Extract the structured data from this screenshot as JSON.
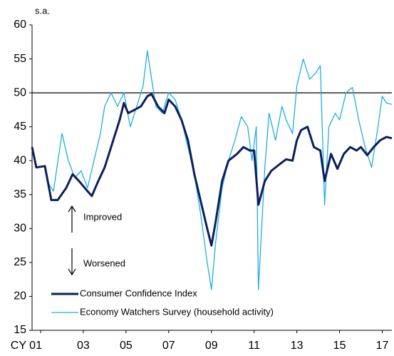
{
  "chart_data": {
    "type": "line",
    "unit_label": "s.a.",
    "annotations": [
      "Improved",
      "Worsened"
    ],
    "reference_line": 50,
    "xlim": [
      2000.6,
      2017.45
    ],
    "xticks": [
      {
        "value": 2001,
        "label": "CY 01"
      },
      {
        "value": 2003,
        "label": "03"
      },
      {
        "value": 2005,
        "label": "05"
      },
      {
        "value": 2007,
        "label": "07"
      },
      {
        "value": 2009,
        "label": "09"
      },
      {
        "value": 2011,
        "label": "11"
      },
      {
        "value": 2013,
        "label": "13"
      },
      {
        "value": 2015,
        "label": "15"
      },
      {
        "value": 2017,
        "label": "17"
      }
    ],
    "ylim": [
      15,
      60
    ],
    "yticks": [
      15,
      20,
      25,
      30,
      35,
      40,
      45,
      50,
      55,
      60
    ],
    "series": [
      {
        "name": "Consumer Confidence Index",
        "color": "#0b1f5e",
        "width": 3,
        "x": [
          2000.6,
          2000.8,
          2001.2,
          2001.5,
          2001.8,
          2002.2,
          2002.5,
          2002.8,
          2003.2,
          2003.4,
          2003.7,
          2004.0,
          2004.3,
          2004.7,
          2004.9,
          2005.1,
          2005.4,
          2005.7,
          2006.0,
          2006.2,
          2006.5,
          2006.8,
          2007.0,
          2007.3,
          2007.6,
          2007.9,
          2008.2,
          2008.5,
          2008.8,
          2009.0,
          2009.2,
          2009.5,
          2009.8,
          2010.2,
          2010.5,
          2010.8,
          2011.0,
          2011.2,
          2011.5,
          2011.8,
          2012.2,
          2012.5,
          2012.8,
          2013.0,
          2013.2,
          2013.5,
          2013.8,
          2014.1,
          2014.3,
          2014.6,
          2014.9,
          2015.2,
          2015.5,
          2015.8,
          2016.0,
          2016.3,
          2016.6,
          2016.9,
          2017.2,
          2017.45
        ],
        "values": [
          42,
          39,
          39.2,
          34.2,
          34.2,
          36,
          38,
          37,
          35.5,
          34.8,
          37,
          39,
          42,
          46,
          48.5,
          47,
          47.5,
          48,
          49.5,
          49.8,
          48,
          47,
          49,
          48,
          46,
          43,
          38,
          34,
          30,
          27.5,
          31,
          37,
          40,
          41,
          42,
          41.5,
          41.5,
          33.5,
          37,
          38.5,
          39.5,
          40.2,
          40,
          43,
          44.5,
          45,
          42,
          41.5,
          37,
          41,
          38.8,
          41,
          42,
          41.5,
          42,
          40.8,
          42,
          43,
          43.5,
          43.3
        ]
      },
      {
        "name": "Economy Watchers Survey (household activity)",
        "color": "#1eaee6",
        "width": 1.3,
        "x": [
          2001.3,
          2001.6,
          2002.0,
          2002.3,
          2002.6,
          2002.9,
          2003.2,
          2003.5,
          2003.8,
          2004.0,
          2004.3,
          2004.6,
          2004.9,
          2005.2,
          2005.5,
          2005.8,
          2006.0,
          2006.2,
          2006.4,
          2006.7,
          2007.0,
          2007.3,
          2007.6,
          2007.9,
          2008.2,
          2008.5,
          2008.8,
          2009.0,
          2009.2,
          2009.5,
          2009.8,
          2010.1,
          2010.4,
          2010.7,
          2010.9,
          2011.1,
          2011.2,
          2011.5,
          2011.7,
          2012.0,
          2012.3,
          2012.5,
          2012.8,
          2013.0,
          2013.3,
          2013.6,
          2013.9,
          2014.1,
          2014.3,
          2014.5,
          2014.8,
          2015.0,
          2015.3,
          2015.6,
          2015.9,
          2016.2,
          2016.5,
          2016.8,
          2017.0,
          2017.2,
          2017.45
        ],
        "values": [
          37,
          35.5,
          44,
          40,
          37.5,
          38.5,
          36,
          40,
          44,
          48,
          50,
          48,
          50,
          45,
          48,
          51,
          56.2,
          52,
          48,
          47,
          50,
          49,
          46,
          42,
          38,
          32,
          25,
          21,
          28,
          36,
          40,
          43,
          46.5,
          45,
          40,
          45,
          21,
          39,
          47,
          43,
          48,
          46,
          44,
          51,
          55,
          52,
          53,
          54,
          33.5,
          45,
          47,
          46,
          50,
          50.8,
          46,
          42,
          39,
          45,
          49.5,
          48.5,
          48.3
        ]
      }
    ]
  }
}
